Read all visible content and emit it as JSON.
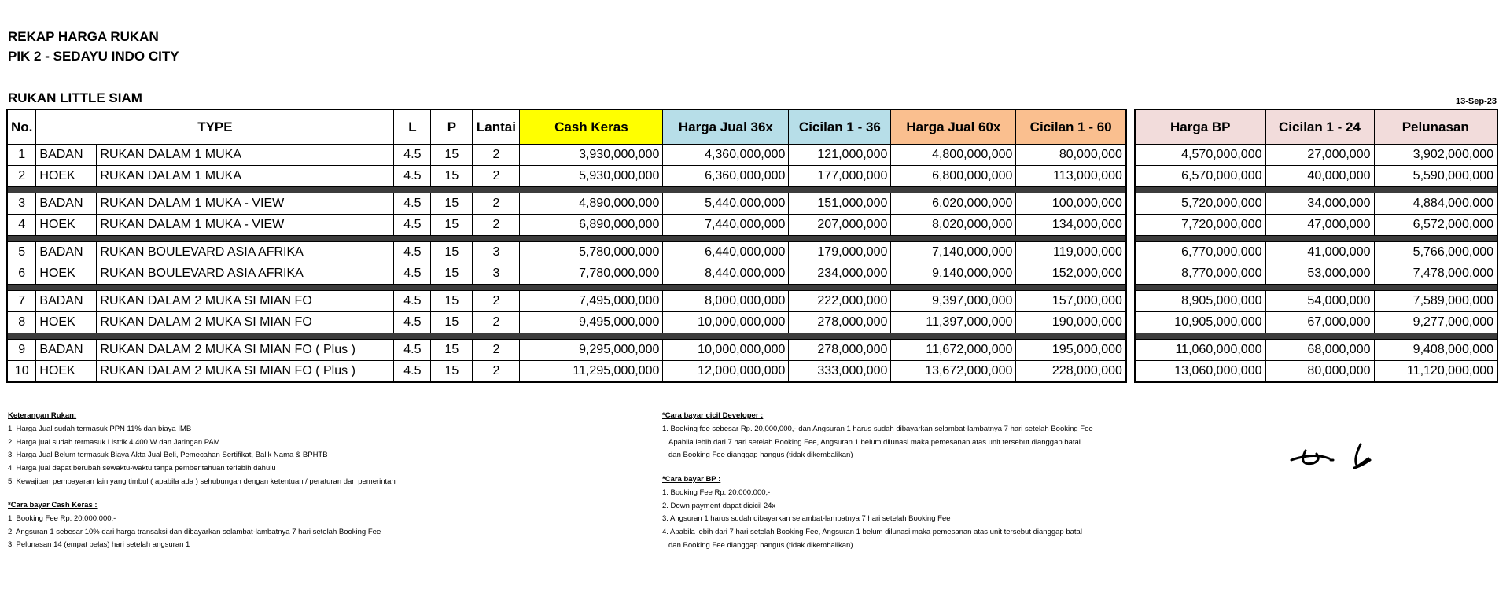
{
  "header": {
    "title": "REKAP HARGA RUKAN",
    "subtitle": "PIK 2 - SEDAYU INDO CITY",
    "section": "RUKAN LITTLE SIAM",
    "date": "13-Sep-23"
  },
  "table": {
    "left_columns": [
      "No.",
      "TYPE",
      "L",
      "P",
      "Lantai",
      "Cash Keras",
      "Harga Jual 36x",
      "Cicilan 1 - 36",
      "Harga Jual 60x",
      "Cicilan 1 - 60"
    ],
    "right_columns": [
      "Harga BP",
      "Cicilan 1 - 24",
      "Pelunasan"
    ],
    "rows": [
      [
        1,
        "BADAN",
        "RUKAN DALAM 1 MUKA",
        4.5,
        15,
        2,
        "3,930,000,000",
        "4,360,000,000",
        "121,000,000",
        "4,800,000,000",
        "80,000,000",
        "4,570,000,000",
        "27,000,000",
        "3,902,000,000"
      ],
      [
        2,
        "HOEK",
        "RUKAN DALAM 1 MUKA",
        4.5,
        15,
        2,
        "5,930,000,000",
        "6,360,000,000",
        "177,000,000",
        "6,800,000,000",
        "113,000,000",
        "6,570,000,000",
        "40,000,000",
        "5,590,000,000"
      ],
      [
        3,
        "BADAN",
        "RUKAN DALAM 1 MUKA - VIEW",
        4.5,
        15,
        2,
        "4,890,000,000",
        "5,440,000,000",
        "151,000,000",
        "6,020,000,000",
        "100,000,000",
        "5,720,000,000",
        "34,000,000",
        "4,884,000,000"
      ],
      [
        4,
        "HOEK",
        "RUKAN DALAM 1 MUKA - VIEW",
        4.5,
        15,
        2,
        "6,890,000,000",
        "7,440,000,000",
        "207,000,000",
        "8,020,000,000",
        "134,000,000",
        "7,720,000,000",
        "47,000,000",
        "6,572,000,000"
      ],
      [
        5,
        "BADAN",
        "RUKAN BOULEVARD ASIA AFRIKA",
        4.5,
        15,
        3,
        "5,780,000,000",
        "6,440,000,000",
        "179,000,000",
        "7,140,000,000",
        "119,000,000",
        "6,770,000,000",
        "41,000,000",
        "5,766,000,000"
      ],
      [
        6,
        "HOEK",
        "RUKAN BOULEVARD ASIA AFRIKA",
        4.5,
        15,
        3,
        "7,780,000,000",
        "8,440,000,000",
        "234,000,000",
        "9,140,000,000",
        "152,000,000",
        "8,770,000,000",
        "53,000,000",
        "7,478,000,000"
      ],
      [
        7,
        "BADAN",
        "RUKAN DALAM 2 MUKA SI MIAN FO",
        4.5,
        15,
        2,
        "7,495,000,000",
        "8,000,000,000",
        "222,000,000",
        "9,397,000,000",
        "157,000,000",
        "8,905,000,000",
        "54,000,000",
        "7,589,000,000"
      ],
      [
        8,
        "HOEK",
        "RUKAN DALAM 2 MUKA SI MIAN FO",
        4.5,
        15,
        2,
        "9,495,000,000",
        "10,000,000,000",
        "278,000,000",
        "11,397,000,000",
        "190,000,000",
        "10,905,000,000",
        "67,000,000",
        "9,277,000,000"
      ],
      [
        9,
        "BADAN",
        "RUKAN DALAM 2 MUKA SI MIAN FO ( Plus )",
        4.5,
        15,
        2,
        "9,295,000,000",
        "10,000,000,000",
        "278,000,000",
        "11,672,000,000",
        "195,000,000",
        "11,060,000,000",
        "68,000,000",
        "9,408,000,000"
      ],
      [
        10,
        "HOEK",
        "RUKAN DALAM 2 MUKA SI MIAN FO ( Plus )",
        4.5,
        15,
        2,
        "11,295,000,000",
        "12,000,000,000",
        "333,000,000",
        "13,672,000,000",
        "228,000,000",
        "13,060,000,000",
        "80,000,000",
        "11,120,000,000"
      ]
    ]
  },
  "notes": [
    {
      "heading": "Keterangan Rukan:",
      "lines": [
        "1. Harga Jual sudah termasuk PPN 11% dan biaya IMB",
        "2. Harga jual sudah termasuk Listrik 4.400 W dan Jaringan PAM",
        "3. Harga Jual Belum termasuk Biaya Akta Jual Beli, Pemecahan Sertifikat, Balik Nama & BPHTB",
        "4. Harga jual dapat berubah sewaktu-waktu tanpa pemberitahuan terlebih dahulu",
        "5. Kewajiban pembayaran lain yang timbul ( apabila ada ) sehubungan dengan ketentuan / peraturan dari pemerintah"
      ]
    },
    {
      "heading": "*Cara bayar Cash Keras :",
      "lines": [
        "1. Booking Fee Rp. 20.000.000,-",
        "2. Angsuran 1 sebesar 10% dari harga transaksi dan dibayarkan selambat-lambatnya 7 hari setelah Booking Fee",
        "3. Pelunasan 14 (empat belas) hari setelah angsuran 1"
      ]
    },
    {
      "heading": "*Cara bayar cicil Developer :",
      "lines": [
        "1. Booking fee sebesar Rp. 20,000,000,- dan Angsuran 1 harus sudah dibayarkan selambat-lambatnya 7 hari setelah Booking Fee",
        "Apabila lebih dari 7 hari setelah Booking Fee, Angsuran 1 belum dilunasi maka pemesanan atas unit tersebut dianggap batal",
        "dan Booking Fee dianggap hangus (tidak dikembalikan)"
      ]
    },
    {
      "heading": "*Cara bayar BP :",
      "lines": [
        "1. Booking Fee Rp. 20.000.000,-",
        "2. Down payment dapat dicicil 24x",
        "3. Angsuran 1 harus sudah dibayarkan selambat-lambatnya 7 hari setelah Booking Fee",
        "4. Apabila lebih dari 7 hari setelah Booking Fee, Angsuran 1 belum dilunasi maka pemesanan atas unit tersebut dianggap batal",
        "dan Booking Fee dianggap hangus (tidak dikembalikan)"
      ]
    }
  ]
}
